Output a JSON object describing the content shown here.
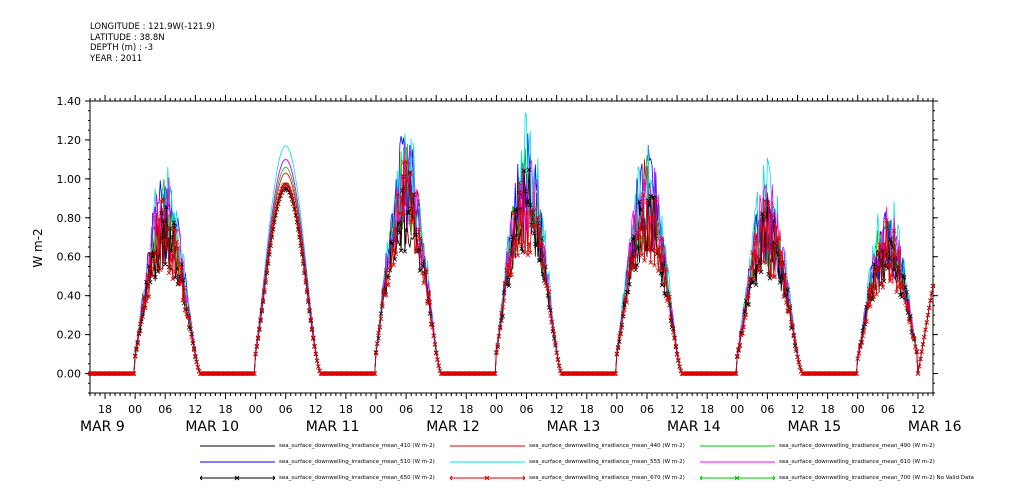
{
  "header": {
    "lines": [
      "LONGITUDE : 121.9W(-121.9)",
      "LATITUDE : 38.8N",
      "DEPTH (m) : -3",
      "YEAR : 2011"
    ]
  },
  "chart_data": {
    "type": "line",
    "title": "",
    "xlabel": "",
    "ylabel": "W m-2",
    "ylim": [
      -0.1,
      1.4
    ],
    "yticks": [
      "0.00",
      "0.20",
      "0.40",
      "0.60",
      "0.80",
      "1.00",
      "1.20",
      "1.40"
    ],
    "x_hour_ticks": [
      "18",
      "00",
      "06",
      "12",
      "18",
      "00",
      "06",
      "12",
      "18",
      "00",
      "06",
      "12",
      "18",
      "00",
      "06",
      "12",
      "18",
      "00",
      "06",
      "12",
      "18",
      "00",
      "06",
      "12",
      "18",
      "00",
      "06",
      "12",
      "18",
      "00",
      "06",
      "12"
    ],
    "x_day_labels": [
      "MAR 9",
      "MAR 10",
      "MAR 11",
      "MAR 12",
      "MAR 13",
      "MAR 14",
      "MAR 15",
      "MAR 16"
    ],
    "xlim": [
      "2011-03-09T15:00",
      "2011-03-16T15:00"
    ],
    "grid": false,
    "legend_position": "bottom",
    "daily_peak_410": [
      0.93,
      0.98,
      1.12,
      1.12,
      1.05,
      0.9,
      0.8,
      0.0
    ],
    "series": [
      {
        "name": "sea_surface_downwelling_irradiance_mean_410 (W m-2)",
        "color": "#000000",
        "marker": "",
        "peaks": [
          0.93,
          0.98,
          1.12,
          1.12,
          1.05,
          0.9,
          0.8
        ]
      },
      {
        "name": "sea_surface_downwelling_irradiance_mean_440 (W m-2)",
        "color": "#e00000",
        "marker": "",
        "peaks": [
          1.0,
          1.03,
          1.17,
          1.18,
          1.12,
          0.95,
          0.84
        ]
      },
      {
        "name": "sea_surface_downwelling_irradiance_mean_490 (W m-2)",
        "color": "#00c000",
        "marker": "",
        "peaks": [
          1.03,
          1.06,
          1.2,
          1.2,
          1.15,
          0.98,
          0.86
        ]
      },
      {
        "name": "sea_surface_downwelling_irradiance_mean_510 (W m-2)",
        "color": "#0000ff",
        "marker": "",
        "peaks": [
          1.06,
          1.1,
          1.27,
          1.25,
          1.18,
          1.0,
          0.88
        ]
      },
      {
        "name": "sea_surface_downwelling_irradiance_mean_555 (W m-2)",
        "color": "#00e0e0",
        "marker": "",
        "peaks": [
          1.12,
          1.17,
          1.32,
          1.37,
          1.25,
          1.12,
          0.97
        ]
      },
      {
        "name": "sea_surface_downwelling_irradiance_mean_610 (W m-2)",
        "color": "#ff00ff",
        "marker": "",
        "peaks": [
          1.05,
          1.1,
          1.2,
          1.22,
          1.16,
          1.02,
          0.9
        ]
      },
      {
        "name": "sea_surface_downwelling_irradiance_mean_650 (W m-2)",
        "color": "#000000",
        "marker": "x",
        "peaks": [
          0.9,
          0.95,
          1.08,
          1.08,
          1.0,
          0.88,
          0.78
        ]
      },
      {
        "name": "sea_surface_downwelling_irradiance_mean_670 (W m-2)",
        "color": "#e00000",
        "marker": "x",
        "peaks": [
          0.92,
          0.97,
          1.1,
          1.1,
          1.02,
          0.9,
          0.8
        ]
      },
      {
        "name": "sea_surface_downwelling_irradiance_mean_700 (W m-2) No Valid Data",
        "color": "#00c000",
        "marker": "x",
        "peaks": []
      }
    ]
  }
}
